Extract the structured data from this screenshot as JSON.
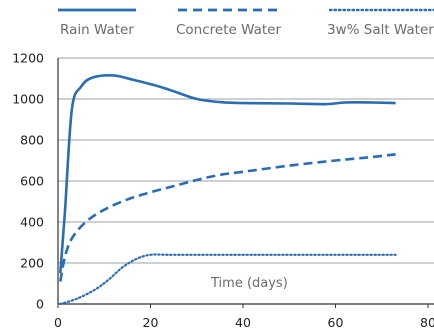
{
  "chart_data": {
    "type": "line",
    "title": "",
    "xlabel": "Time (days)",
    "ylabel": "",
    "xlim": [
      0,
      80
    ],
    "ylim": [
      0,
      1200
    ],
    "x_ticks": [
      0,
      20,
      40,
      60,
      80
    ],
    "y_ticks": [
      0,
      200,
      400,
      600,
      800,
      1000,
      1200
    ],
    "grid": "horizontal",
    "legend_position": "top",
    "colors": {
      "series": "#2a6db3",
      "grid": "#9ea3a8",
      "axis": "#333333",
      "legend_text": "#6b6b6b"
    },
    "series": [
      {
        "name": "Rain Water",
        "line_style": "solid",
        "points": [
          {
            "x": 0.5,
            "y": 150
          },
          {
            "x": 1.5,
            "y": 450
          },
          {
            "x": 3,
            "y": 950
          },
          {
            "x": 5,
            "y": 1060
          },
          {
            "x": 7.5,
            "y": 1105
          },
          {
            "x": 12,
            "y": 1115
          },
          {
            "x": 16,
            "y": 1095
          },
          {
            "x": 22,
            "y": 1060
          },
          {
            "x": 26,
            "y": 1030
          },
          {
            "x": 30,
            "y": 1000
          },
          {
            "x": 35,
            "y": 985
          },
          {
            "x": 40,
            "y": 980
          },
          {
            "x": 50,
            "y": 978
          },
          {
            "x": 58,
            "y": 975
          },
          {
            "x": 62,
            "y": 983
          },
          {
            "x": 68,
            "y": 983
          },
          {
            "x": 73,
            "y": 980
          }
        ]
      },
      {
        "name": "Concrete Water",
        "line_style": "dashed",
        "points": [
          {
            "x": 0.5,
            "y": 110
          },
          {
            "x": 1.5,
            "y": 230
          },
          {
            "x": 3,
            "y": 320
          },
          {
            "x": 6,
            "y": 400
          },
          {
            "x": 10,
            "y": 460
          },
          {
            "x": 15,
            "y": 510
          },
          {
            "x": 20,
            "y": 545
          },
          {
            "x": 25,
            "y": 575
          },
          {
            "x": 30,
            "y": 605
          },
          {
            "x": 35,
            "y": 630
          },
          {
            "x": 40,
            "y": 645
          },
          {
            "x": 50,
            "y": 675
          },
          {
            "x": 60,
            "y": 700
          },
          {
            "x": 67,
            "y": 715
          },
          {
            "x": 73,
            "y": 730
          }
        ]
      },
      {
        "name": "3w% Salt Water",
        "line_style": "dotted",
        "points": [
          {
            "x": 0.5,
            "y": 0
          },
          {
            "x": 4,
            "y": 25
          },
          {
            "x": 8,
            "y": 70
          },
          {
            "x": 11,
            "y": 120
          },
          {
            "x": 14,
            "y": 180
          },
          {
            "x": 17,
            "y": 220
          },
          {
            "x": 20,
            "y": 240
          },
          {
            "x": 25,
            "y": 240
          },
          {
            "x": 40,
            "y": 240
          },
          {
            "x": 55,
            "y": 240
          },
          {
            "x": 73,
            "y": 240
          }
        ]
      }
    ]
  }
}
